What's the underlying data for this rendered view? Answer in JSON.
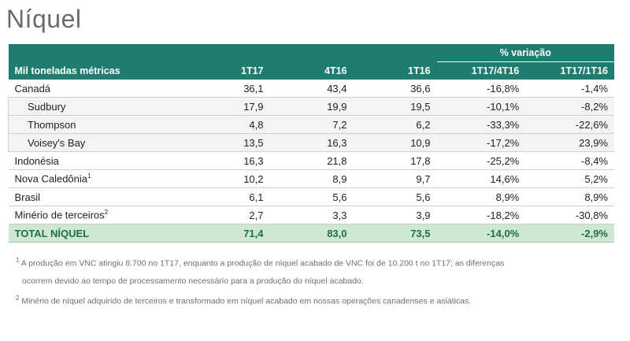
{
  "title": "Níquel",
  "table": {
    "variation_header": "% variação",
    "columns": [
      "Mil toneladas métricas",
      "1T17",
      "4T16",
      "1T16",
      "1T17/4T16",
      "1T17/1T16"
    ],
    "rows": [
      {
        "label": "Canadá",
        "sup": "",
        "sub": false,
        "values": [
          "36,1",
          "43,4",
          "36,6",
          "-16,8%",
          "-1,4%"
        ]
      },
      {
        "label": "Sudbury",
        "sup": "",
        "sub": true,
        "values": [
          "17,9",
          "19,9",
          "19,5",
          "-10,1%",
          "-8,2%"
        ]
      },
      {
        "label": "Thompson",
        "sup": "",
        "sub": true,
        "values": [
          "4,8",
          "7,2",
          "6,2",
          "-33,3%",
          "-22,6%"
        ]
      },
      {
        "label": "Voisey's Bay",
        "sup": "",
        "sub": true,
        "values": [
          "13,5",
          "16,3",
          "10,9",
          "-17,2%",
          "23,9%"
        ]
      },
      {
        "label": "Indonésia",
        "sup": "",
        "sub": false,
        "values": [
          "16,3",
          "21,8",
          "17,8",
          "-25,2%",
          "-8,4%"
        ]
      },
      {
        "label": "Nova Caledônia",
        "sup": "1",
        "sub": false,
        "values": [
          "10,2",
          "8,9",
          "9,7",
          "14,6%",
          "5,2%"
        ]
      },
      {
        "label": "Brasil",
        "sup": "",
        "sub": false,
        "values": [
          "6,1",
          "5,6",
          "5,6",
          "8,9%",
          "8,9%"
        ]
      },
      {
        "label": "Minério de terceiros",
        "sup": "2",
        "sub": false,
        "values": [
          "2,7",
          "3,3",
          "3,9",
          "-18,2%",
          "-30,8%"
        ]
      }
    ],
    "total": {
      "label": "TOTAL NÍQUEL",
      "values": [
        "71,4",
        "83,0",
        "73,5",
        "-14,0%",
        "-2,9%"
      ]
    }
  },
  "footnotes": {
    "note1_mark": "1",
    "note1_line1": "A produção em VNC atingiu 8.700 no 1T17, enquanto a produção de níquel acabado de VNC foi de 10.200 t no 1T17; as diferenças",
    "note1_line2": "ocorrem devido ao tempo de processamento necessário para a produção do níquel acabado.",
    "note2_mark": "2",
    "note2_line1": "Minério de níquel adquirido de terceiros e transformado em níquel acabado em nossas operações canadenses e asiáticas."
  },
  "colors": {
    "header_bg": "#1e7d6e",
    "total_bg": "#cfe8d3",
    "title": "#6b6b6b"
  }
}
